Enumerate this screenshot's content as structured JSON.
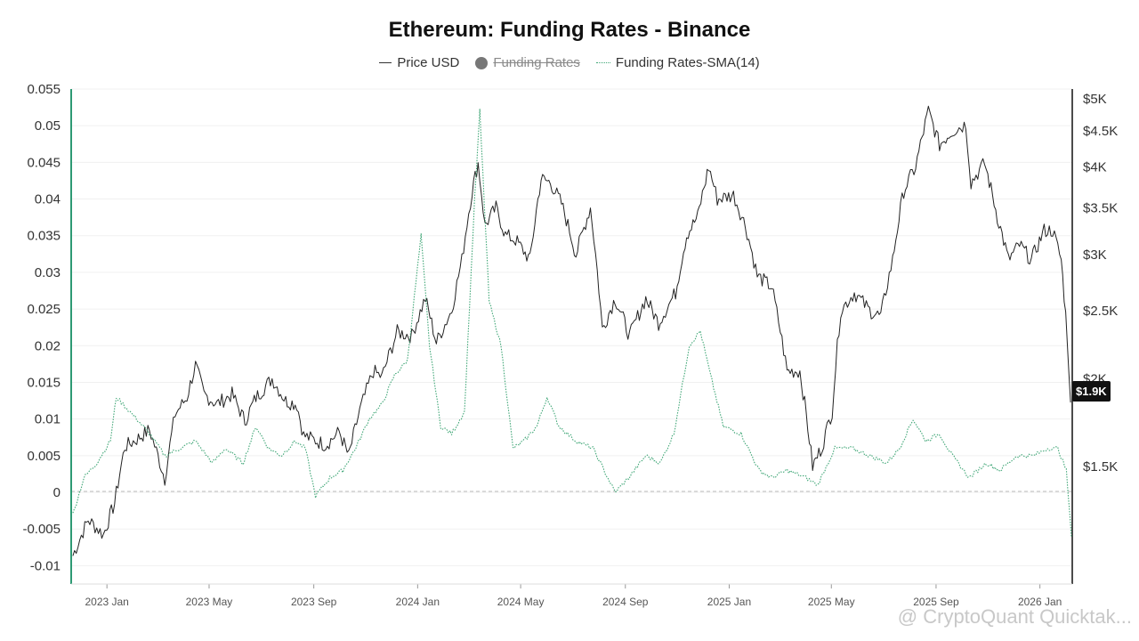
{
  "chart_data": {
    "type": "line",
    "title": "Ethereum: Funding Rates - Binance",
    "legend": {
      "placement": "top-center",
      "items": [
        {
          "label": "Price USD",
          "style": "line",
          "color": "#333333",
          "hidden": false
        },
        {
          "label": "Funding Rates",
          "style": "dot",
          "color": "#777777",
          "hidden": true
        },
        {
          "label": "Funding Rates-SMA(14)",
          "style": "dotted",
          "color": "#3fa676",
          "hidden": false
        }
      ]
    },
    "x_axis": {
      "type": "date",
      "tick_labels": [
        "2023 Jan",
        "2023 May",
        "2023 Sep",
        "2024 Jan",
        "2024 May",
        "2024 Sep",
        "2025 Jan",
        "2025 May",
        "2025 Sep",
        "2026 Jan"
      ],
      "tick_dates": [
        "2023-01-01",
        "2023-05-01",
        "2023-09-01",
        "2024-01-01",
        "2024-05-01",
        "2024-09-01",
        "2025-01-01",
        "2025-05-01",
        "2025-09-01",
        "2026-01-01"
      ],
      "range": [
        "2022-11-20",
        "2026-02-08"
      ]
    },
    "y_left": {
      "tick_labels": [
        "0.055",
        "0.05",
        "0.045",
        "0.04",
        "0.035",
        "0.03",
        "0.025",
        "0.02",
        "0.015",
        "0.01",
        "0.005",
        "0",
        "-0.005",
        "-0.01"
      ],
      "ylim": [
        -0.0125,
        0.055
      ],
      "zero_line": true
    },
    "y_right": {
      "scale": "log",
      "tick_labels": [
        "$5K",
        "$4.5K",
        "$4K",
        "$3.5K",
        "$3K",
        "$2.5K",
        "$2K",
        "$1.5K"
      ],
      "tick_values": [
        5000,
        4500,
        4000,
        3500,
        3000,
        2500,
        2000,
        1500
      ],
      "current_label": "$1.9K"
    },
    "grid": true,
    "series": [
      {
        "name": "Price USD",
        "axis": "right",
        "color": "#222222",
        "points": [
          [
            "2022-11-22",
            1120
          ],
          [
            "2022-12-10",
            1260
          ],
          [
            "2022-12-28",
            1200
          ],
          [
            "2023-01-10",
            1330
          ],
          [
            "2023-01-22",
            1600
          ],
          [
            "2023-02-05",
            1640
          ],
          [
            "2023-02-20",
            1690
          ],
          [
            "2023-03-10",
            1440
          ],
          [
            "2023-03-22",
            1780
          ],
          [
            "2023-04-05",
            1880
          ],
          [
            "2023-04-15",
            2090
          ],
          [
            "2023-04-25",
            1900
          ],
          [
            "2023-05-10",
            1840
          ],
          [
            "2023-05-28",
            1900
          ],
          [
            "2023-06-12",
            1740
          ],
          [
            "2023-06-25",
            1880
          ],
          [
            "2023-07-14",
            2000
          ],
          [
            "2023-07-30",
            1860
          ],
          [
            "2023-08-12",
            1840
          ],
          [
            "2023-08-20",
            1660
          ],
          [
            "2023-09-05",
            1630
          ],
          [
            "2023-09-15",
            1610
          ],
          [
            "2023-10-01",
            1680
          ],
          [
            "2023-10-12",
            1550
          ],
          [
            "2023-10-25",
            1800
          ],
          [
            "2023-11-10",
            2050
          ],
          [
            "2023-11-20",
            2010
          ],
          [
            "2023-12-08",
            2330
          ],
          [
            "2023-12-25",
            2300
          ],
          [
            "2024-01-10",
            2600
          ],
          [
            "2024-01-23",
            2250
          ],
          [
            "2024-02-10",
            2500
          ],
          [
            "2024-02-22",
            2950
          ],
          [
            "2024-03-05",
            3700
          ],
          [
            "2024-03-12",
            4050
          ],
          [
            "2024-03-20",
            3300
          ],
          [
            "2024-04-02",
            3500
          ],
          [
            "2024-04-13",
            3200
          ],
          [
            "2024-04-25",
            3150
          ],
          [
            "2024-05-12",
            2950
          ],
          [
            "2024-05-25",
            3850
          ],
          [
            "2024-06-05",
            3800
          ],
          [
            "2024-06-18",
            3550
          ],
          [
            "2024-07-05",
            3000
          ],
          [
            "2024-07-22",
            3500
          ],
          [
            "2024-08-05",
            2350
          ],
          [
            "2024-08-20",
            2600
          ],
          [
            "2024-09-06",
            2300
          ],
          [
            "2024-09-25",
            2600
          ],
          [
            "2024-10-10",
            2400
          ],
          [
            "2024-10-30",
            2650
          ],
          [
            "2024-11-12",
            3200
          ],
          [
            "2024-11-25",
            3400
          ],
          [
            "2024-12-08",
            4000
          ],
          [
            "2024-12-18",
            3600
          ],
          [
            "2025-01-06",
            3650
          ],
          [
            "2025-01-20",
            3300
          ],
          [
            "2025-02-03",
            2800
          ],
          [
            "2025-02-20",
            2700
          ],
          [
            "2025-03-10",
            2050
          ],
          [
            "2025-03-25",
            2050
          ],
          [
            "2025-04-09",
            1500
          ],
          [
            "2025-04-20",
            1600
          ],
          [
            "2025-05-02",
            1800
          ],
          [
            "2025-05-12",
            2500
          ],
          [
            "2025-05-28",
            2650
          ],
          [
            "2025-06-15",
            2500
          ],
          [
            "2025-06-28",
            2450
          ],
          [
            "2025-07-12",
            2950
          ],
          [
            "2025-07-25",
            3700
          ],
          [
            "2025-08-08",
            4000
          ],
          [
            "2025-08-23",
            4800
          ],
          [
            "2025-09-05",
            4300
          ],
          [
            "2025-09-20",
            4500
          ],
          [
            "2025-10-06",
            4600
          ],
          [
            "2025-10-12",
            3800
          ],
          [
            "2025-10-28",
            4050
          ],
          [
            "2025-11-12",
            3400
          ],
          [
            "2025-11-25",
            2950
          ],
          [
            "2025-12-08",
            3100
          ],
          [
            "2025-12-22",
            2950
          ],
          [
            "2026-01-06",
            3250
          ],
          [
            "2026-01-16",
            3250
          ],
          [
            "2026-01-26",
            2950
          ],
          [
            "2026-02-02",
            2300
          ],
          [
            "2026-02-06",
            1850
          ]
        ]
      },
      {
        "name": "Funding Rates-SMA(14)",
        "axis": "left",
        "color": "#3fa676",
        "points": [
          [
            "2022-11-22",
            -0.003
          ],
          [
            "2022-12-05",
            0.002
          ],
          [
            "2022-12-20",
            0.004
          ],
          [
            "2023-01-05",
            0.007
          ],
          [
            "2023-01-12",
            0.013
          ],
          [
            "2023-01-20",
            0.012
          ],
          [
            "2023-02-05",
            0.01
          ],
          [
            "2023-02-20",
            0.008
          ],
          [
            "2023-03-10",
            0.005
          ],
          [
            "2023-03-28",
            0.006
          ],
          [
            "2023-04-15",
            0.007
          ],
          [
            "2023-05-05",
            0.004
          ],
          [
            "2023-05-20",
            0.006
          ],
          [
            "2023-06-10",
            0.004
          ],
          [
            "2023-06-25",
            0.009
          ],
          [
            "2023-07-10",
            0.006
          ],
          [
            "2023-07-25",
            0.005
          ],
          [
            "2023-08-10",
            0.007
          ],
          [
            "2023-08-22",
            0.006
          ],
          [
            "2023-09-03",
            -0.0005
          ],
          [
            "2023-09-20",
            0.002
          ],
          [
            "2023-10-05",
            0.003
          ],
          [
            "2023-10-20",
            0.006
          ],
          [
            "2023-11-05",
            0.01
          ],
          [
            "2023-11-20",
            0.012
          ],
          [
            "2023-12-05",
            0.016
          ],
          [
            "2023-12-20",
            0.018
          ],
          [
            "2024-01-05",
            0.035
          ],
          [
            "2024-01-15",
            0.02
          ],
          [
            "2024-01-28",
            0.009
          ],
          [
            "2024-02-10",
            0.008
          ],
          [
            "2024-02-25",
            0.011
          ],
          [
            "2024-03-08",
            0.04
          ],
          [
            "2024-03-14",
            0.052
          ],
          [
            "2024-03-25",
            0.026
          ],
          [
            "2024-04-08",
            0.02
          ],
          [
            "2024-04-22",
            0.006
          ],
          [
            "2024-05-05",
            0.007
          ],
          [
            "2024-05-20",
            0.009
          ],
          [
            "2024-06-01",
            0.013
          ],
          [
            "2024-06-15",
            0.009
          ],
          [
            "2024-07-05",
            0.007
          ],
          [
            "2024-07-25",
            0.006
          ],
          [
            "2024-08-20",
            0.0
          ],
          [
            "2024-09-05",
            0.002
          ],
          [
            "2024-09-25",
            0.005
          ],
          [
            "2024-10-12",
            0.004
          ],
          [
            "2024-10-28",
            0.008
          ],
          [
            "2024-11-15",
            0.02
          ],
          [
            "2024-11-28",
            0.022
          ],
          [
            "2024-12-10",
            0.016
          ],
          [
            "2024-12-25",
            0.009
          ],
          [
            "2025-01-15",
            0.008
          ],
          [
            "2025-02-05",
            0.003
          ],
          [
            "2025-02-20",
            0.002
          ],
          [
            "2025-03-10",
            0.003
          ],
          [
            "2025-04-01",
            0.002
          ],
          [
            "2025-04-15",
            0.001
          ],
          [
            "2025-05-05",
            0.006
          ],
          [
            "2025-05-25",
            0.006
          ],
          [
            "2025-06-15",
            0.005
          ],
          [
            "2025-07-05",
            0.004
          ],
          [
            "2025-07-20",
            0.006
          ],
          [
            "2025-08-05",
            0.01
          ],
          [
            "2025-08-20",
            0.007
          ],
          [
            "2025-09-05",
            0.008
          ],
          [
            "2025-09-20",
            0.005
          ],
          [
            "2025-10-10",
            0.002
          ],
          [
            "2025-10-30",
            0.004
          ],
          [
            "2025-11-15",
            0.003
          ],
          [
            "2025-12-05",
            0.005
          ],
          [
            "2025-12-25",
            0.005
          ],
          [
            "2026-01-10",
            0.006
          ],
          [
            "2026-01-22",
            0.006
          ],
          [
            "2026-02-01",
            0.003
          ],
          [
            "2026-02-07",
            -0.006
          ]
        ]
      }
    ]
  },
  "watermark": "@ CryptoQuant Quicktak..."
}
